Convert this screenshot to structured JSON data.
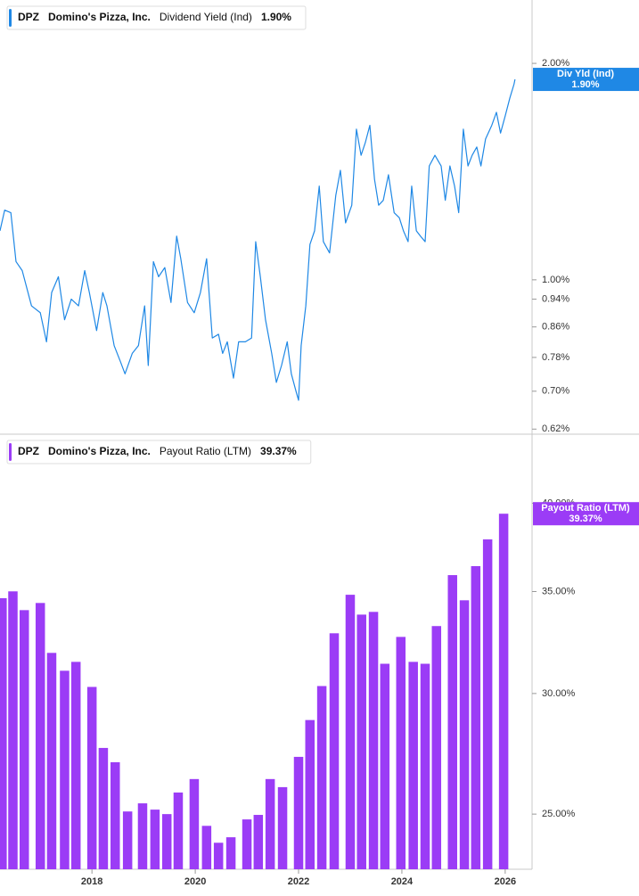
{
  "chart_data": [
    {
      "type": "line",
      "legend": {
        "ticker": "DPZ",
        "company": "Domino's Pizza, Inc.",
        "label": "Dividend Yield (Ind)",
        "value": "1.90%"
      },
      "badge": {
        "label": "Div Yld (Ind)",
        "value": "1.90%"
      },
      "log_scale": true,
      "xlim": [
        2016.22,
        2026.52
      ],
      "ylim": [
        0.61,
        2.45
      ],
      "yticks": [
        {
          "value": 0.62,
          "label": "0.62%"
        },
        {
          "value": 0.7,
          "label": "0.70%"
        },
        {
          "value": 0.78,
          "label": "0.78%"
        },
        {
          "value": 0.86,
          "label": "0.86%"
        },
        {
          "value": 0.94,
          "label": "0.94%"
        },
        {
          "value": 1.0,
          "label": "1.00%"
        },
        {
          "value": 2.0,
          "label": "2.00%"
        }
      ],
      "x": [
        2016.22,
        2016.31,
        2016.43,
        2016.53,
        2016.65,
        2016.83,
        2017.0,
        2017.12,
        2017.22,
        2017.35,
        2017.47,
        2017.6,
        2017.74,
        2017.86,
        2017.95,
        2018.09,
        2018.21,
        2018.29,
        2018.43,
        2018.55,
        2018.64,
        2018.78,
        2018.9,
        2019.02,
        2019.09,
        2019.19,
        2019.29,
        2019.41,
        2019.53,
        2019.64,
        2019.72,
        2019.85,
        2019.98,
        2020.1,
        2020.22,
        2020.33,
        2020.45,
        2020.53,
        2020.62,
        2020.74,
        2020.84,
        2020.97,
        2021.09,
        2021.17,
        2021.26,
        2021.36,
        2021.48,
        2021.57,
        2021.67,
        2021.78,
        2021.86,
        2021.95,
        2022.0,
        2022.05,
        2022.14,
        2022.22,
        2022.31,
        2022.4,
        2022.48,
        2022.6,
        2022.72,
        2022.81,
        2022.91,
        2023.03,
        2023.12,
        2023.21,
        2023.29,
        2023.38,
        2023.47,
        2023.55,
        2023.64,
        2023.74,
        2023.85,
        2023.95,
        2024.03,
        2024.12,
        2024.19,
        2024.28,
        2024.36,
        2024.45,
        2024.53,
        2024.64,
        2024.76,
        2024.84,
        2024.93,
        2025.02,
        2025.1,
        2025.19,
        2025.28,
        2025.36,
        2025.45,
        2025.53,
        2025.62,
        2025.74,
        2025.83,
        2025.91,
        2026.0,
        2026.09,
        2026.17,
        2026.19
      ],
      "series": [
        {
          "color": "#1f88e5",
          "values": [
            1.17,
            1.25,
            1.24,
            1.06,
            1.03,
            0.92,
            0.9,
            0.82,
            0.96,
            1.01,
            0.88,
            0.94,
            0.92,
            1.03,
            0.96,
            0.85,
            0.96,
            0.92,
            0.81,
            0.77,
            0.74,
            0.79,
            0.81,
            0.92,
            0.76,
            1.06,
            1.01,
            1.04,
            0.93,
            1.15,
            1.07,
            0.93,
            0.9,
            0.96,
            1.07,
            0.83,
            0.84,
            0.79,
            0.82,
            0.73,
            0.82,
            0.82,
            0.83,
            1.13,
            1.01,
            0.88,
            0.79,
            0.72,
            0.76,
            0.82,
            0.74,
            0.7,
            0.68,
            0.81,
            0.92,
            1.12,
            1.17,
            1.35,
            1.13,
            1.09,
            1.31,
            1.42,
            1.2,
            1.27,
            1.62,
            1.49,
            1.55,
            1.64,
            1.38,
            1.27,
            1.29,
            1.4,
            1.24,
            1.22,
            1.17,
            1.13,
            1.35,
            1.17,
            1.15,
            1.13,
            1.44,
            1.49,
            1.44,
            1.29,
            1.44,
            1.35,
            1.24,
            1.62,
            1.44,
            1.49,
            1.53,
            1.44,
            1.57,
            1.64,
            1.71,
            1.6,
            1.69,
            1.79,
            1.87,
            1.9
          ]
        }
      ]
    },
    {
      "type": "bar",
      "legend": {
        "ticker": "DPZ",
        "company": "Domino's Pizza, Inc.",
        "label": "Payout Ratio (LTM)",
        "value": "39.37%"
      },
      "badge": {
        "label": "Payout Ratio (LTM)",
        "value": "39.37%"
      },
      "log_scale": true,
      "xlim": [
        2016.22,
        2026.52
      ],
      "xticks": [
        2018,
        2020,
        2022,
        2024,
        2026
      ],
      "ylim": [
        23.0,
        44.4
      ],
      "yticks": [
        {
          "value": 25,
          "label": "25.00%"
        },
        {
          "value": 30,
          "label": "30.00%"
        },
        {
          "value": 35,
          "label": "35.00%"
        },
        {
          "value": 40,
          "label": "40.00%"
        }
      ],
      "x": [
        2016.26,
        2016.47,
        2016.69,
        2017.0,
        2017.22,
        2017.47,
        2017.69,
        2018.0,
        2018.22,
        2018.45,
        2018.69,
        2018.98,
        2019.22,
        2019.45,
        2019.67,
        2019.98,
        2020.22,
        2020.45,
        2020.69,
        2021.0,
        2021.22,
        2021.45,
        2021.69,
        2022.0,
        2022.22,
        2022.45,
        2022.69,
        2023.0,
        2023.22,
        2023.45,
        2023.67,
        2023.98,
        2024.22,
        2024.45,
        2024.67,
        2024.98,
        2025.21,
        2025.43,
        2025.66,
        2025.97
      ],
      "series": [
        {
          "color": "#9b3cf6",
          "values": [
            34.65,
            35.01,
            34.03,
            34.4,
            31.9,
            31.05,
            31.47,
            30.3,
            27.63,
            27.04,
            25.1,
            25.41,
            25.17,
            25.0,
            25.83,
            26.36,
            24.56,
            23.94,
            24.14,
            24.8,
            24.97,
            26.36,
            26.04,
            27.26,
            28.82,
            30.34,
            32.86,
            34.83,
            33.8,
            33.94,
            31.38,
            32.68,
            31.47,
            31.38,
            33.22,
            35.88,
            34.54,
            36.37,
            37.87,
            39.37
          ]
        }
      ]
    }
  ]
}
